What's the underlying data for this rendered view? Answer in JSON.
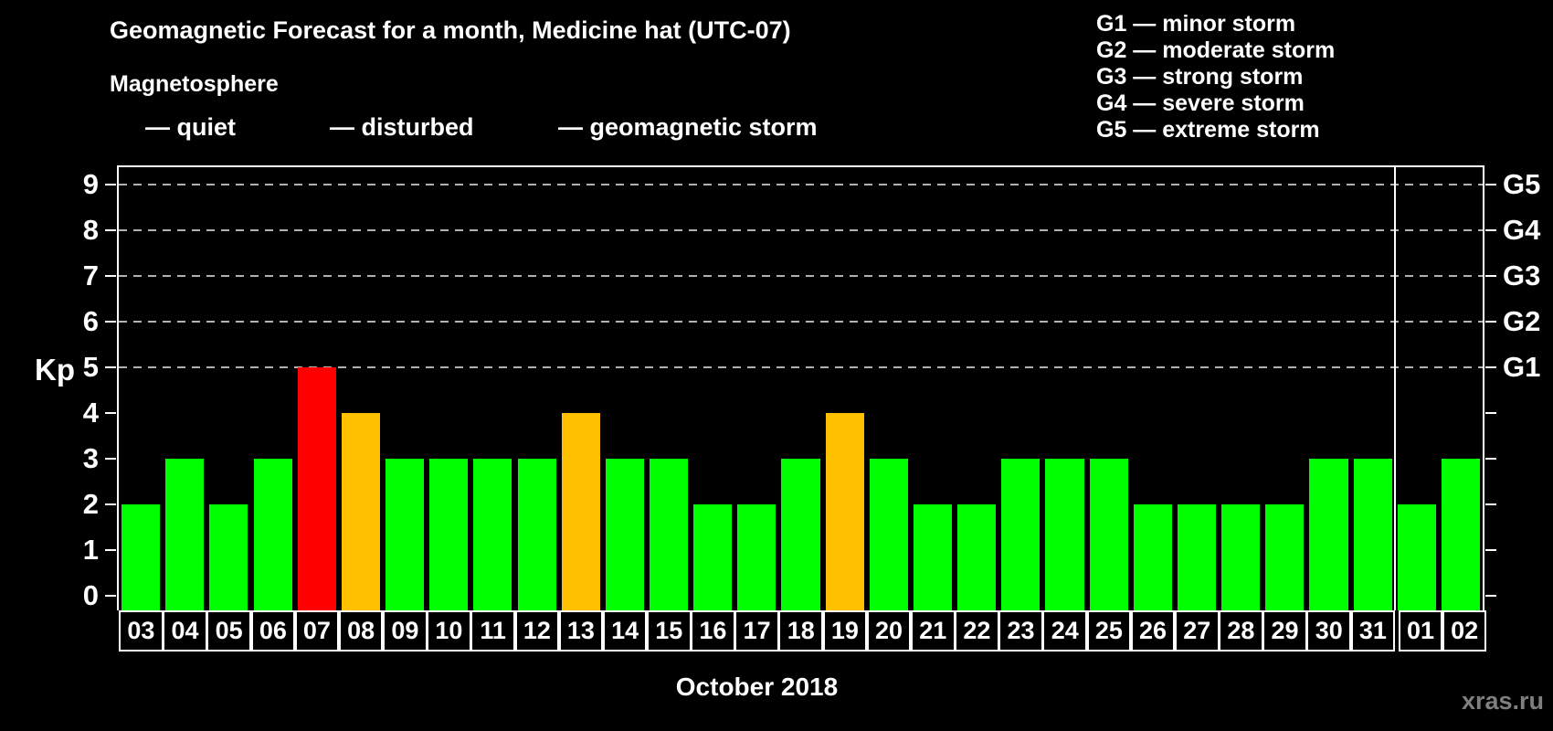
{
  "header": {
    "title": "Geomagnetic Forecast for a month, Medicine hat (UTC-07)",
    "subtitle": "Magnetosphere",
    "legend": [
      {
        "name": "quiet",
        "label": "— quiet",
        "color": "#00ff00"
      },
      {
        "name": "disturbed",
        "label": "— disturbed",
        "color": "#ffc000"
      },
      {
        "name": "storm",
        "label": "— geomagnetic storm",
        "color": "#ff0000"
      }
    ],
    "g_scale": [
      "G1 — minor storm",
      "G2 — moderate storm",
      "G3 — strong storm",
      "G4 — severe storm",
      "G5 — extreme storm"
    ]
  },
  "chart_data": {
    "type": "bar",
    "title": "Geomagnetic Forecast for a month, Medicine hat (UTC-07)",
    "ylabel": "Kp",
    "xlabel": "October 2018",
    "ylim": [
      0,
      9
    ],
    "y_ticks": [
      0,
      1,
      2,
      3,
      4,
      5,
      6,
      7,
      8,
      9
    ],
    "gridlines": [
      5,
      6,
      7,
      8,
      9
    ],
    "grid_style": "dashed",
    "legend_position": "top-left",
    "right_axis_labels": [
      {
        "kp": 5,
        "label": "G1"
      },
      {
        "kp": 6,
        "label": "G2"
      },
      {
        "kp": 7,
        "label": "G3"
      },
      {
        "kp": 8,
        "label": "G4"
      },
      {
        "kp": 9,
        "label": "G5"
      }
    ],
    "categories": [
      "03",
      "04",
      "05",
      "06",
      "07",
      "08",
      "09",
      "10",
      "11",
      "12",
      "13",
      "14",
      "15",
      "16",
      "17",
      "18",
      "19",
      "20",
      "21",
      "22",
      "23",
      "24",
      "25",
      "26",
      "27",
      "28",
      "29",
      "30",
      "31",
      "01",
      "02"
    ],
    "values": [
      2,
      3,
      2,
      3,
      5,
      4,
      3,
      3,
      3,
      3,
      4,
      3,
      3,
      2,
      2,
      3,
      4,
      3,
      2,
      2,
      3,
      3,
      3,
      2,
      2,
      2,
      2,
      3,
      3,
      2,
      3
    ],
    "statuses": [
      "quiet",
      "quiet",
      "quiet",
      "quiet",
      "storm",
      "disturbed",
      "quiet",
      "quiet",
      "quiet",
      "quiet",
      "disturbed",
      "quiet",
      "quiet",
      "quiet",
      "quiet",
      "quiet",
      "disturbed",
      "quiet",
      "quiet",
      "quiet",
      "quiet",
      "quiet",
      "quiet",
      "quiet",
      "quiet",
      "quiet",
      "quiet",
      "quiet",
      "quiet",
      "quiet",
      "quiet"
    ],
    "status_colors": {
      "quiet": "#00ff00",
      "disturbed": "#ffc000",
      "storm": "#ff0000"
    },
    "month_separator_after_index": 28
  },
  "footer": {
    "xaxis_title": "October 2018",
    "watermark": "xras.ru"
  }
}
